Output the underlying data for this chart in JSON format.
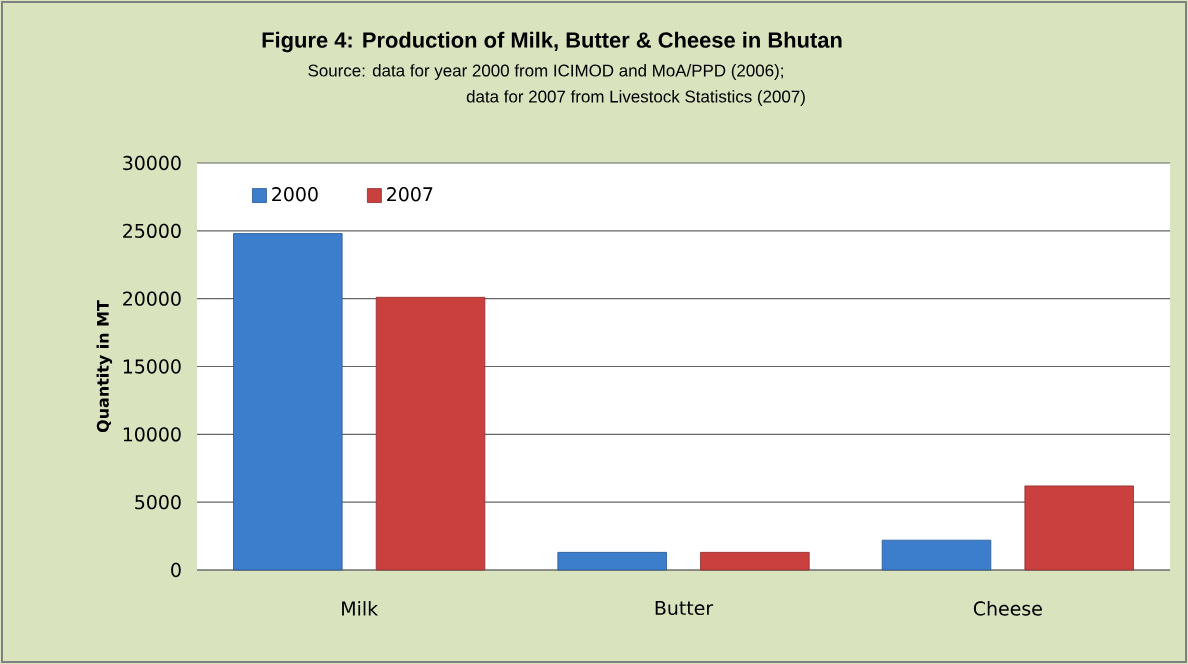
{
  "chart_data": {
    "type": "bar",
    "title": "Figure 4: Production of Milk, Butter & Cheese in Bhutan",
    "subtitle": "Source: data for year 2000 from ICIMOD and MoA/PPD (2006);",
    "annotations": [
      "data for 2007 from Livestock Statistics (2007)"
    ],
    "ylabel": "Quantity in MT",
    "categories": [
      "Milk",
      "Butter",
      "Cheese"
    ],
    "series": [
      {
        "name": "2000",
        "color": "#3c7dcc",
        "values": [
          24800,
          1300,
          2200
        ]
      },
      {
        "name": "2007",
        "color": "#c9403f",
        "values": [
          20100,
          1300,
          6200
        ]
      }
    ],
    "ylim": [
      0,
      30000
    ],
    "yticks": [
      0,
      5000,
      10000,
      15000,
      20000,
      25000,
      30000
    ],
    "grid": "y",
    "legend": "top left"
  }
}
